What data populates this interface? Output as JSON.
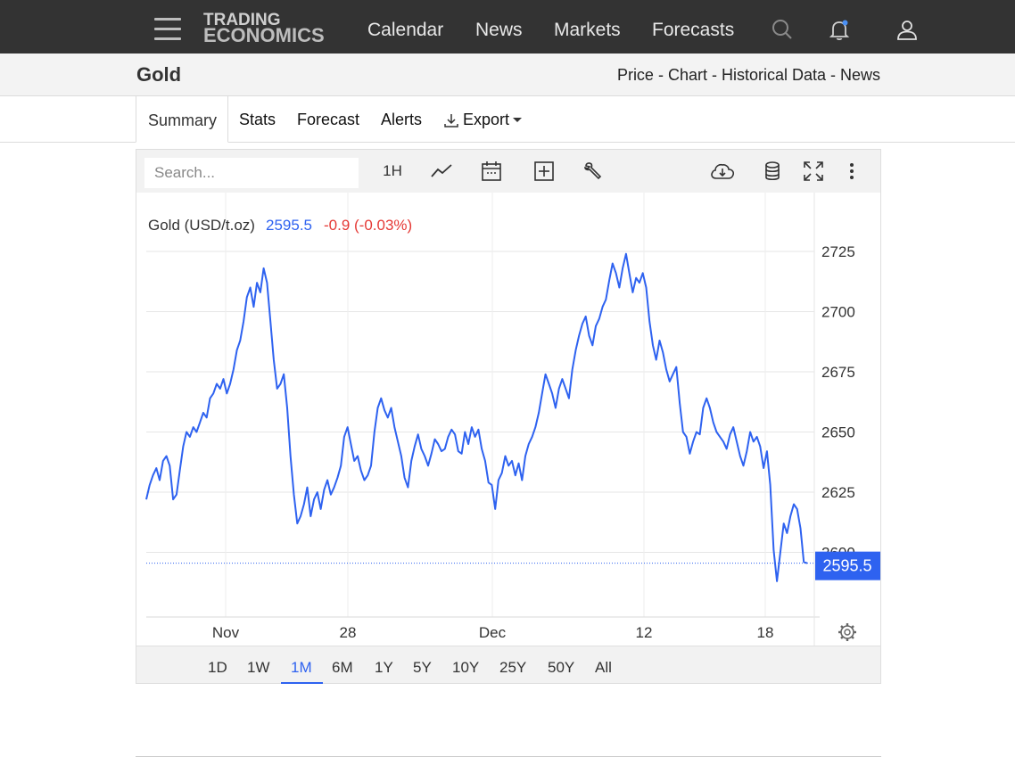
{
  "nav": {
    "logo_line1": "TRADING",
    "logo_line2": "ECONOMICS",
    "links": [
      "Calendar",
      "News",
      "Markets",
      "Forecasts"
    ]
  },
  "header": {
    "title": "Gold",
    "links": "Price - Chart - Historical Data - News"
  },
  "tabs": {
    "summary": "Summary",
    "stats": "Stats",
    "forecast": "Forecast",
    "alerts": "Alerts",
    "export": "Export"
  },
  "toolbar": {
    "search_placeholder": "Search...",
    "interval": "1H"
  },
  "ranges": {
    "items": [
      "1D",
      "1W",
      "1M",
      "6M",
      "1Y",
      "5Y",
      "10Y",
      "25Y",
      "50Y",
      "All"
    ],
    "selected": "1M"
  },
  "colors": {
    "line": "#2e62f0",
    "negative": "#e53935",
    "nav_bg": "#333333"
  },
  "chart_data": {
    "type": "line",
    "title": "Gold (USD/t.oz)",
    "last_price": "2595.5",
    "change": "-0.9 (-0.03%)",
    "price_tag": "2595.5",
    "x_tick_labels": [
      "Nov",
      "28",
      "Dec",
      "12",
      "18"
    ],
    "y_tick_labels": [
      "2600",
      "2625",
      "2650",
      "2675",
      "2700",
      "2725"
    ],
    "ylim": [
      2570,
      2750
    ],
    "grid": true,
    "series": [
      {
        "values": [
          2622,
          2628,
          2632,
          2635,
          2630,
          2638,
          2640,
          2636,
          2622,
          2624,
          2634,
          2644,
          2650,
          2648,
          2652,
          2650,
          2654,
          2658,
          2656,
          2664,
          2666,
          2670,
          2668,
          2672,
          2666,
          2670,
          2676,
          2684,
          2688,
          2696,
          2706,
          2710,
          2702,
          2712,
          2708,
          2718,
          2712,
          2696,
          2680,
          2668,
          2670,
          2674,
          2660,
          2640,
          2624,
          2612,
          2615,
          2620,
          2627,
          2615,
          2622,
          2625,
          2618,
          2626,
          2630,
          2624,
          2627,
          2631,
          2636,
          2648,
          2652,
          2645,
          2638,
          2640,
          2634,
          2630,
          2632,
          2636,
          2650,
          2660,
          2664,
          2659,
          2656,
          2660,
          2652,
          2646,
          2640,
          2631,
          2627,
          2638,
          2644,
          2649,
          2643,
          2640,
          2636,
          2641,
          2647,
          2645,
          2642,
          2643,
          2648,
          2651,
          2649,
          2642,
          2641,
          2650,
          2645,
          2652,
          2648,
          2651,
          2643,
          2638,
          2629,
          2628,
          2618,
          2630,
          2633,
          2640,
          2636,
          2638,
          2632,
          2637,
          2630,
          2640,
          2645,
          2648,
          2652,
          2658,
          2666,
          2674,
          2670,
          2666,
          2660,
          2668,
          2672,
          2668,
          2664,
          2676,
          2684,
          2690,
          2695,
          2698,
          2690,
          2686,
          2694,
          2697,
          2702,
          2705,
          2713,
          2720,
          2716,
          2710,
          2718,
          2724,
          2716,
          2708,
          2714,
          2712,
          2716,
          2710,
          2696,
          2686,
          2680,
          2688,
          2683,
          2676,
          2671,
          2674,
          2677,
          2662,
          2650,
          2648,
          2641,
          2646,
          2650,
          2649,
          2660,
          2664,
          2660,
          2654,
          2650,
          2648,
          2646,
          2643,
          2649,
          2652,
          2646,
          2640,
          2636,
          2642,
          2650,
          2646,
          2648,
          2644,
          2635,
          2642,
          2628,
          2601,
          2588,
          2600,
          2612,
          2608,
          2615,
          2620,
          2618,
          2610,
          2596,
          2595.5
        ]
      }
    ]
  }
}
